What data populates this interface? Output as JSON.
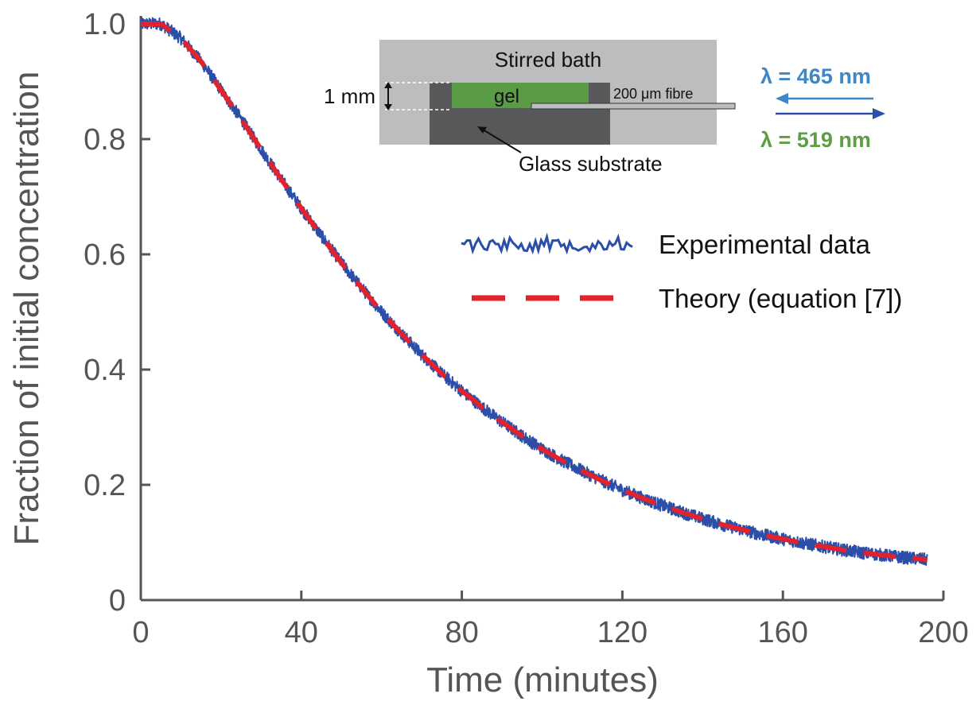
{
  "chart_data": {
    "type": "line",
    "xlabel": "Time (minutes)",
    "ylabel": "Fraction of initial concentration",
    "xlim": [
      0,
      200
    ],
    "ylim": [
      0,
      1.0
    ],
    "xticks": [
      "0",
      "40",
      "80",
      "120",
      "160",
      "200"
    ],
    "yticks": [
      "0",
      "0.2",
      "0.4",
      "0.6",
      "0.8",
      "1.0"
    ],
    "grid": false,
    "legend_position": "right",
    "series": [
      {
        "name": "Experimental data",
        "style": "noisy-solid",
        "color": "#2b4fa8",
        "x": [
          0,
          5,
          10,
          15,
          20,
          25,
          30,
          35,
          40,
          45,
          50,
          55,
          60,
          65,
          70,
          75,
          80,
          85,
          90,
          95,
          100,
          105,
          110,
          115,
          120,
          125,
          130,
          135,
          140,
          145,
          150,
          155,
          160,
          165,
          170,
          175,
          180,
          185,
          190,
          196
        ],
        "y": [
          1.0,
          1.0,
          0.975,
          0.935,
          0.885,
          0.835,
          0.782,
          0.73,
          0.68,
          0.632,
          0.585,
          0.542,
          0.5,
          0.462,
          0.426,
          0.393,
          0.363,
          0.335,
          0.309,
          0.285,
          0.262,
          0.242,
          0.224,
          0.207,
          0.191,
          0.177,
          0.164,
          0.152,
          0.141,
          0.131,
          0.122,
          0.113,
          0.106,
          0.099,
          0.093,
          0.087,
          0.082,
          0.078,
          0.074,
          0.07
        ]
      },
      {
        "name": "Theory (equation [7])",
        "style": "dashed",
        "color": "#e3222b",
        "x": [
          0,
          5,
          10,
          15,
          20,
          25,
          30,
          35,
          40,
          45,
          50,
          55,
          60,
          65,
          70,
          75,
          80,
          85,
          90,
          95,
          100,
          105,
          110,
          115,
          120,
          125,
          130,
          135,
          140,
          145,
          150,
          155,
          160,
          165,
          170,
          175,
          180,
          185,
          190,
          196
        ],
        "y": [
          1.0,
          1.0,
          0.975,
          0.935,
          0.885,
          0.835,
          0.782,
          0.73,
          0.68,
          0.632,
          0.585,
          0.542,
          0.5,
          0.462,
          0.426,
          0.393,
          0.363,
          0.335,
          0.309,
          0.285,
          0.262,
          0.242,
          0.224,
          0.207,
          0.191,
          0.177,
          0.164,
          0.152,
          0.141,
          0.131,
          0.122,
          0.113,
          0.106,
          0.099,
          0.093,
          0.087,
          0.082,
          0.078,
          0.074,
          0.07
        ]
      }
    ]
  },
  "inset": {
    "bath_label": "Stirred bath",
    "gel_label": "gel",
    "fibre_label": "200 μm fibre",
    "thickness_label": "1 mm",
    "substrate_label": "Glass substrate",
    "excitation_label": "λ = 465 nm",
    "emission_label": "λ = 519 nm",
    "colors": {
      "bath": "#bbbdbf",
      "gel": "#5a9b46",
      "substrate": "#58595b",
      "fibre": "#bbbdbf",
      "excitation": "#3f86c6",
      "emission": "#5b9e43",
      "arrow_out": "#2b4fa8"
    }
  }
}
